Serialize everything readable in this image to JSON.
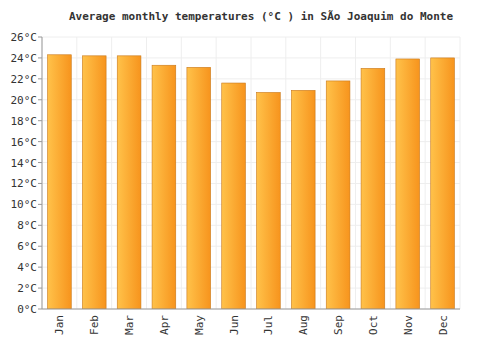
{
  "chart_data": {
    "type": "bar",
    "title": "Average monthly temperatures (°C ) in SÃo Joaquim do Monte",
    "categories": [
      "Jan",
      "Feb",
      "Mar",
      "Apr",
      "May",
      "Jun",
      "Jul",
      "Aug",
      "Sep",
      "Oct",
      "Nov",
      "Dec"
    ],
    "values": [
      24.3,
      24.2,
      24.2,
      23.3,
      23.1,
      21.6,
      20.7,
      20.9,
      21.8,
      23.0,
      23.9,
      24.0
    ],
    "color": "#f7941d",
    "ylim": [
      0,
      26
    ],
    "yticks": [
      {
        "value": 0,
        "label": "0°C"
      },
      {
        "value": 2,
        "label": "2°C"
      },
      {
        "value": 4,
        "label": "4°C"
      },
      {
        "value": 6,
        "label": "6°C"
      },
      {
        "value": 8,
        "label": "8°C"
      },
      {
        "value": 10,
        "label": "10°C"
      },
      {
        "value": 12,
        "label": "12°C"
      },
      {
        "value": 14,
        "label": "14°C"
      },
      {
        "value": 16,
        "label": "16°C"
      },
      {
        "value": 18,
        "label": "18°C"
      },
      {
        "value": 20,
        "label": "20°C"
      },
      {
        "value": 22,
        "label": "22°C"
      },
      {
        "value": 24,
        "label": "24°C"
      },
      {
        "value": 26,
        "label": "26°C"
      }
    ],
    "grid": true
  }
}
